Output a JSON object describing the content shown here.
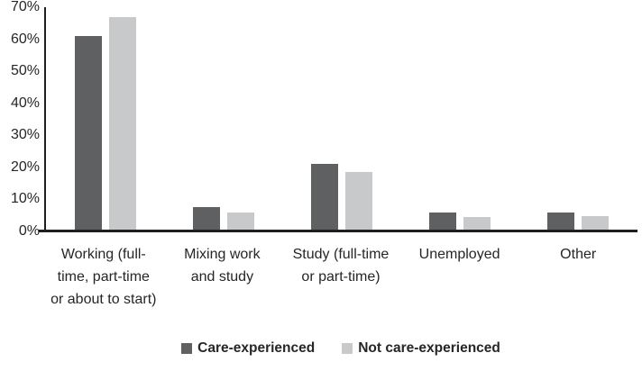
{
  "chart_data": {
    "type": "bar",
    "title": "",
    "categories": [
      "Working (full-time, part-time or about to start)",
      "Mixing work and study",
      "Study (full-time or part-time)",
      "Unemployed",
      "Other"
    ],
    "series": [
      {
        "name": "Care-experienced",
        "color": "#5f6062",
        "values": [
          61,
          7.5,
          21,
          5.8,
          6
        ]
      },
      {
        "name": "Not care-experienced",
        "color": "#c8c9cb",
        "values": [
          67,
          6,
          18.5,
          4.5,
          4.8
        ]
      }
    ],
    "xlabel": "",
    "ylabel": "",
    "ylim": [
      0,
      70
    ],
    "ytick_step": 10,
    "ytick_labels": [
      "0%",
      "10%",
      "20%",
      "30%",
      "40%",
      "50%",
      "60%",
      "70%"
    ],
    "grid": false,
    "legend_position": "bottom",
    "axis_color": "#1f1f1f",
    "text_color": "#262626",
    "background_color": "#ffffff"
  }
}
